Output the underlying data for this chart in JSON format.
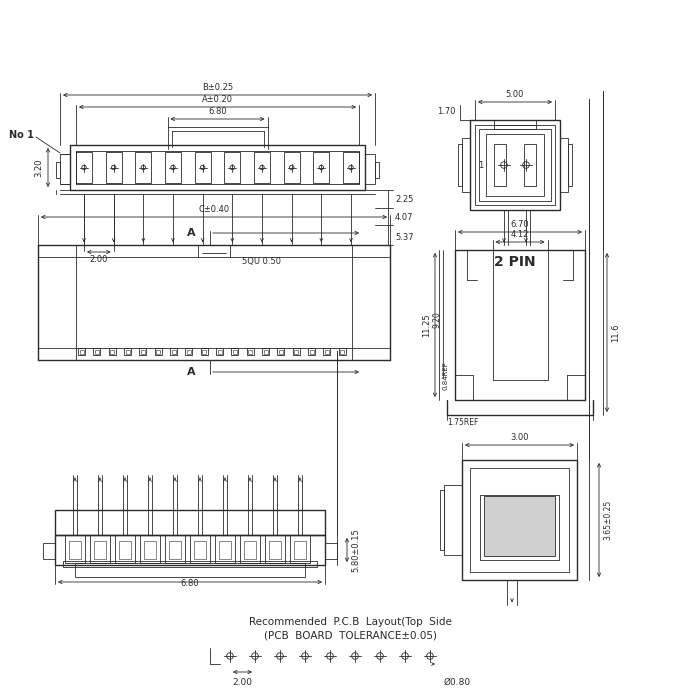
{
  "line_color": "#2a2a2a",
  "dims": {
    "B_tol": "B±0.25",
    "A_tol": "A±0.20",
    "w_680": "6.80",
    "h_320": "3.20",
    "pitch_200": "2.00",
    "pin_sq": "5QU 0.50",
    "d_225": "2.25",
    "d_407": "4.07",
    "d_537": "5.37",
    "d_500": "5.00",
    "d_170": "1.70",
    "label_2pin": "2 PIN",
    "C_tol": "C±0.40",
    "A_lbl": "A",
    "d_670": "6.70",
    "d_412": "4.12",
    "d_1125": "11.25",
    "d_920": "9.20",
    "d_084": "0.84REF",
    "d_116": "11.6",
    "d_175": "1.75REF",
    "d_300": "3.00",
    "d_365": "3.65±0.25",
    "d_580": "5.80±0.15",
    "d_680b": "6.80",
    "pcb1": "Recommended  P.C.B  Layout(Top  Side",
    "pcb2": "(PCB  BOARD  TOLERANCE±0.05)",
    "p200": "2.00",
    "hole": "Ø0.80",
    "No1": "No 1"
  }
}
